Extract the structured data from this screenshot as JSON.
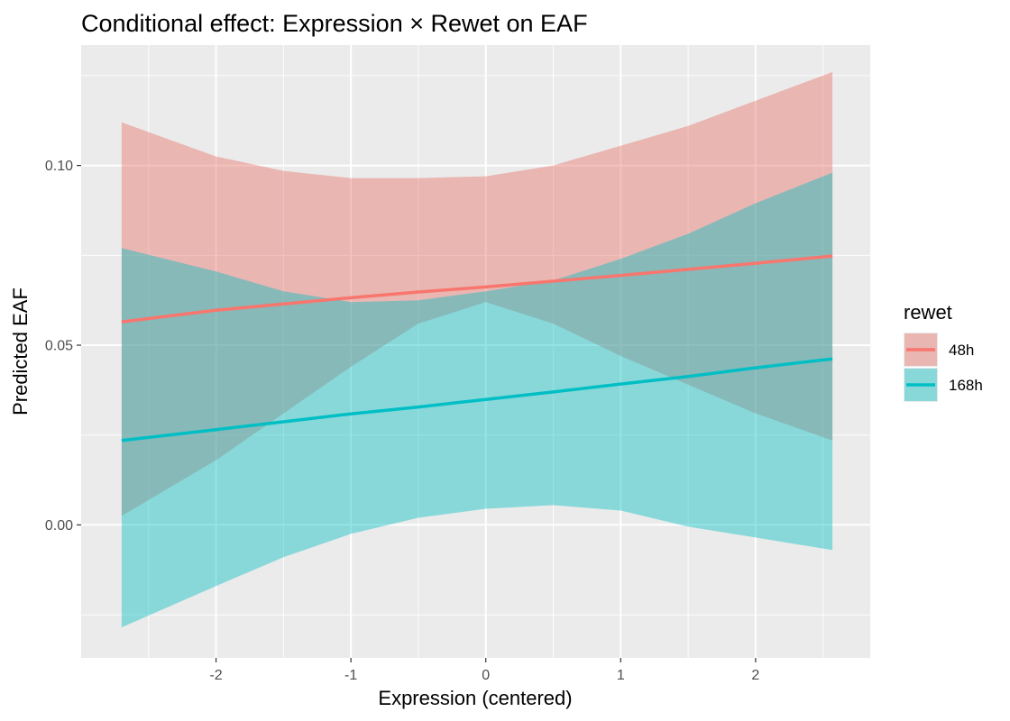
{
  "chart_data": {
    "type": "line",
    "title": "Conditional effect: Expression × Rewet on EAF",
    "xlabel": "Expression (centered)",
    "ylabel": "Predicted EAF",
    "xlim": [
      -3.0,
      2.85
    ],
    "ylim": [
      -0.037,
      0.1335
    ],
    "x_ticks": [
      -2,
      -1,
      0,
      1,
      2
    ],
    "x_tick_labels": [
      "-2",
      "-1",
      "0",
      "1",
      "2"
    ],
    "y_ticks": [
      0.0,
      0.05,
      0.1
    ],
    "y_tick_labels": [
      "0.00",
      "0.05",
      "0.10"
    ],
    "grid": true,
    "legend": {
      "title": "rewet",
      "position": "right"
    },
    "x": [
      -2.7,
      -2.0,
      -1.5,
      -1.0,
      -0.5,
      0.0,
      0.5,
      1.0,
      1.5,
      2.0,
      2.57
    ],
    "series": [
      {
        "name": "48h",
        "color": "#F8766D",
        "fill": "rgba(232,110,100,0.42)",
        "values": [
          0.0565,
          0.0597,
          0.0615,
          0.0632,
          0.0648,
          0.0662,
          0.0678,
          0.0694,
          0.0711,
          0.0728,
          0.0748
        ],
        "lower": [
          0.0025,
          0.018,
          0.031,
          0.044,
          0.056,
          0.062,
          0.056,
          0.047,
          0.039,
          0.031,
          0.0235
        ],
        "upper": [
          0.112,
          0.1025,
          0.0985,
          0.0965,
          0.0965,
          0.097,
          0.1,
          0.1055,
          0.111,
          0.118,
          0.126
        ]
      },
      {
        "name": "168h",
        "color": "#00BFC4",
        "fill": "rgba(0,191,196,0.42)",
        "values": [
          0.0235,
          0.0265,
          0.0287,
          0.0309,
          0.0328,
          0.0349,
          0.037,
          0.0392,
          0.0413,
          0.0437,
          0.0462
        ],
        "lower": [
          -0.0285,
          -0.017,
          -0.009,
          -0.0025,
          0.002,
          0.0045,
          0.0055,
          0.004,
          -0.0005,
          -0.0035,
          -0.007
        ],
        "upper": [
          0.077,
          0.0705,
          0.065,
          0.062,
          0.0625,
          0.065,
          0.068,
          0.074,
          0.081,
          0.0895,
          0.098
        ]
      }
    ]
  }
}
